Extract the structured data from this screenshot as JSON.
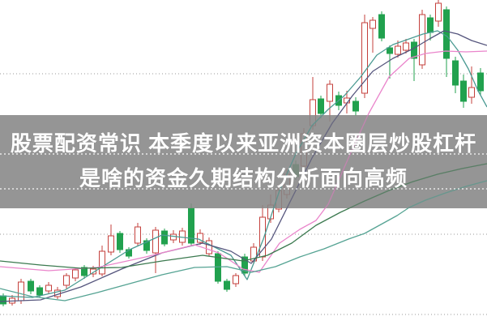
{
  "overlay": {
    "line1": "股票配资常识 本季度以来亚洲资本圈层炒股杠杆",
    "line2": "是啥的资金久期结构分析面向高频",
    "text_color": "#ffffff",
    "band_color": "#868686",
    "band_opacity": 0.88,
    "band_top": 142,
    "band_height": 115,
    "baseline_dotted_lines_y": [
      190,
      233
    ],
    "baseline_dotted_color": "#ffffff"
  },
  "chart_data": {
    "type": "candlestick",
    "title": "",
    "xlabel": "",
    "ylabel": "",
    "x_range": [
      0,
      601
    ],
    "price_range": [
      0,
      400
    ],
    "grid": "horizontal-dotted",
    "gridlines_price": [
      309,
      210,
      111,
      12
    ],
    "gridline_color": "#9a9a9a",
    "up_color": "#c4403c",
    "up_fill": "#ffffff",
    "down_color": "#21a14e",
    "candle_width": 7,
    "legend": "none",
    "candles": [
      [
        4,
        35,
        38,
        22,
        25
      ],
      [
        15,
        26,
        36,
        23,
        32
      ],
      [
        26,
        29,
        56,
        25,
        52
      ],
      [
        38,
        53,
        56,
        37,
        41
      ],
      [
        49,
        45,
        48,
        33,
        36
      ],
      [
        60,
        41,
        52,
        37,
        48
      ],
      [
        71,
        34,
        46,
        31,
        42
      ],
      [
        82,
        48,
        63,
        44,
        60
      ],
      [
        93,
        57,
        70,
        53,
        67
      ],
      [
        104,
        70,
        73,
        56,
        60
      ],
      [
        115,
        62,
        72,
        58,
        68
      ],
      [
        126,
        62,
        97,
        59,
        90
      ],
      [
        137,
        89,
        123,
        85,
        109
      ],
      [
        148,
        112,
        115,
        88,
        92
      ],
      [
        159,
        92,
        95,
        81,
        84
      ],
      [
        170,
        100,
        125,
        96,
        120
      ],
      [
        181,
        103,
        106,
        87,
        91
      ],
      [
        192,
        88,
        120,
        63,
        116
      ],
      [
        203,
        115,
        118,
        96,
        99
      ],
      [
        214,
        104,
        116,
        100,
        111
      ],
      [
        225,
        101,
        119,
        97,
        115
      ],
      [
        236,
        143,
        149,
        96,
        100
      ],
      [
        247,
        101,
        117,
        98,
        112
      ],
      [
        258,
        87,
        107,
        84,
        103
      ],
      [
        269,
        87,
        90,
        50,
        53
      ],
      [
        280,
        53,
        56,
        40,
        43
      ],
      [
        291,
        50,
        63,
        46,
        60
      ],
      [
        302,
        83,
        87,
        59,
        63
      ],
      [
        313,
        78,
        100,
        74,
        95
      ],
      [
        324,
        83,
        147,
        78,
        132
      ],
      [
        334,
        130,
        160,
        125,
        147
      ],
      [
        344,
        142,
        172,
        138,
        165
      ],
      [
        354,
        160,
        192,
        155,
        185
      ],
      [
        365,
        197,
        202,
        178,
        182
      ],
      [
        375,
        195,
        242,
        190,
        235
      ],
      [
        386,
        245,
        305,
        240,
        277
      ],
      [
        396,
        278,
        282,
        254,
        260
      ],
      [
        407,
        275,
        301,
        250,
        296
      ],
      [
        418,
        282,
        287,
        264,
        270
      ],
      [
        428,
        273,
        288,
        260,
        279
      ],
      [
        439,
        275,
        280,
        257,
        263
      ],
      [
        450,
        285,
        382,
        279,
        372
      ],
      [
        460,
        365,
        379,
        335,
        375
      ],
      [
        471,
        382,
        386,
        349,
        353
      ],
      [
        481,
        341,
        344,
        303,
        334
      ],
      [
        491,
        333,
        350,
        329,
        343
      ],
      [
        501,
        338,
        352,
        334,
        347
      ],
      [
        511,
        348,
        352,
        300,
        328
      ],
      [
        521,
        320,
        388,
        315,
        382
      ],
      [
        531,
        378,
        382,
        350,
        360
      ],
      [
        541,
        374,
        400,
        367,
        396
      ],
      [
        551,
        388,
        392,
        305,
        328
      ],
      [
        562,
        325,
        330,
        285,
        295
      ],
      [
        572,
        300,
        308,
        267,
        275
      ],
      [
        582,
        280,
        318,
        272,
        292
      ],
      [
        593,
        310,
        316,
        282,
        288
      ]
    ],
    "ma_lines": [
      {
        "name": "ma-fast-teal",
        "color": "#4a9a92",
        "points": [
          [
            0,
            35
          ],
          [
            40,
            33
          ],
          [
            80,
            42
          ],
          [
            120,
            67
          ],
          [
            160,
            92
          ],
          [
            200,
            110
          ],
          [
            245,
            105
          ],
          [
            285,
            85
          ],
          [
            305,
            55
          ],
          [
            325,
            105
          ],
          [
            345,
            165
          ],
          [
            365,
            210
          ],
          [
            385,
            245
          ],
          [
            405,
            265
          ],
          [
            425,
            282
          ],
          [
            445,
            305
          ],
          [
            465,
            332
          ],
          [
            485,
            345
          ],
          [
            505,
            352
          ],
          [
            522,
            358
          ],
          [
            540,
            362
          ],
          [
            552,
            355
          ],
          [
            565,
            338
          ],
          [
            578,
            315
          ],
          [
            590,
            288
          ],
          [
            601,
            268
          ]
        ]
      },
      {
        "name": "ma-navy",
        "color": "#55557d",
        "points": [
          [
            0,
            28
          ],
          [
            50,
            30
          ],
          [
            100,
            46
          ],
          [
            150,
            68
          ],
          [
            200,
            88
          ],
          [
            250,
            100
          ],
          [
            285,
            90
          ],
          [
            310,
            75
          ],
          [
            335,
            105
          ],
          [
            360,
            155
          ],
          [
            385,
            205
          ],
          [
            410,
            248
          ],
          [
            435,
            282
          ],
          [
            460,
            312
          ],
          [
            485,
            328
          ],
          [
            510,
            340
          ],
          [
            530,
            352
          ],
          [
            548,
            362
          ],
          [
            565,
            358
          ],
          [
            582,
            350
          ],
          [
            601,
            344
          ]
        ]
      },
      {
        "name": "ma-magenta",
        "color": "#ea85cb",
        "points": [
          [
            0,
            71
          ],
          [
            60,
            66
          ],
          [
            120,
            70
          ],
          [
            180,
            83
          ],
          [
            240,
            98
          ],
          [
            270,
            88
          ],
          [
            300,
            68
          ],
          [
            320,
            64
          ],
          [
            345,
            100
          ],
          [
            370,
            117
          ],
          [
            390,
            128
          ],
          [
            405,
            148
          ],
          [
            430,
            205
          ],
          [
            455,
            260
          ],
          [
            480,
            305
          ],
          [
            505,
            328
          ],
          [
            525,
            334
          ],
          [
            550,
            337
          ],
          [
            575,
            336
          ],
          [
            601,
            337
          ]
        ]
      },
      {
        "name": "ma-dark-green",
        "color": "#3c7a50",
        "points": [
          [
            0,
            78
          ],
          [
            50,
            73
          ],
          [
            100,
            69
          ],
          [
            150,
            70
          ],
          [
            200,
            78
          ],
          [
            250,
            85
          ],
          [
            300,
            78
          ],
          [
            330,
            85
          ],
          [
            360,
            100
          ],
          [
            390,
            122
          ],
          [
            420,
            138
          ],
          [
            450,
            152
          ],
          [
            480,
            165
          ],
          [
            510,
            176
          ],
          [
            540,
            185
          ],
          [
            570,
            192
          ],
          [
            601,
            198
          ]
        ]
      },
      {
        "name": "ma-slow-teal",
        "color": "#55a393",
        "points": [
          [
            0,
            44
          ],
          [
            40,
            34
          ],
          [
            80,
            29
          ],
          [
            120,
            39
          ],
          [
            160,
            50
          ],
          [
            200,
            61
          ],
          [
            240,
            70
          ],
          [
            280,
            71
          ],
          [
            310,
            64
          ],
          [
            340,
            71
          ],
          [
            370,
            83
          ],
          [
            400,
            93
          ],
          [
            430,
            105
          ],
          [
            450,
            112
          ],
          [
            470,
            123
          ],
          [
            490,
            134
          ],
          [
            505,
            144
          ],
          [
            525,
            153
          ],
          [
            550,
            162
          ],
          [
            575,
            170
          ],
          [
            601,
            177
          ]
        ]
      }
    ]
  }
}
